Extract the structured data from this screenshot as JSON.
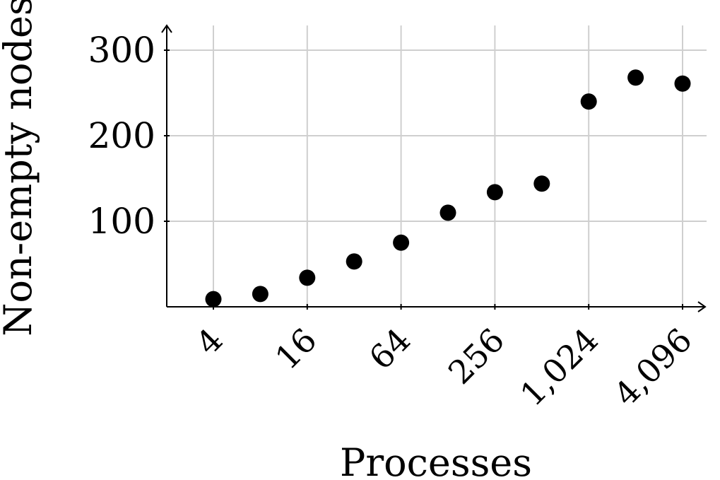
{
  "chart_data": {
    "type": "scatter",
    "title": "",
    "xlabel": "Processes",
    "ylabel": "Non-empty nodes",
    "x_scale": "log2",
    "x_ticks": [
      4,
      16,
      64,
      256,
      1024,
      4096
    ],
    "x_tick_labels": [
      "4",
      "16",
      "64",
      "256",
      "1,024",
      "4,096"
    ],
    "y_ticks": [
      100,
      200,
      300
    ],
    "y_tick_labels": [
      "100",
      "200",
      "300"
    ],
    "xlim": [
      2,
      5000
    ],
    "ylim": [
      0,
      330
    ],
    "grid": true,
    "legend": "none",
    "marker_color": "#000000",
    "grid_color": "#cfcfcf",
    "series": [
      {
        "points": [
          {
            "x": 4,
            "y": 9
          },
          {
            "x": 8,
            "y": 15
          },
          {
            "x": 16,
            "y": 34
          },
          {
            "x": 32,
            "y": 53
          },
          {
            "x": 64,
            "y": 75
          },
          {
            "x": 128,
            "y": 110
          },
          {
            "x": 256,
            "y": 134
          },
          {
            "x": 512,
            "y": 144
          },
          {
            "x": 1024,
            "y": 240
          },
          {
            "x": 2048,
            "y": 268
          },
          {
            "x": 4096,
            "y": 261
          }
        ]
      }
    ]
  }
}
